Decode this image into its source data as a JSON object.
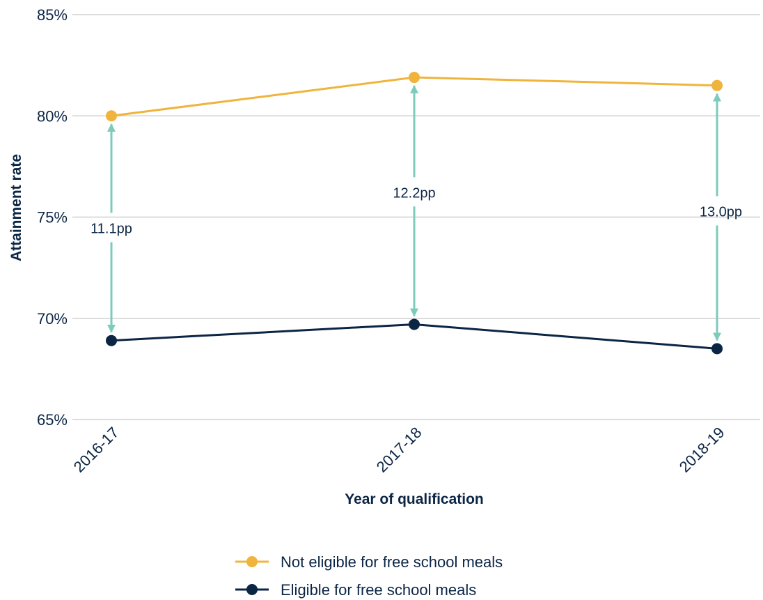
{
  "chart_data": {
    "type": "line",
    "xlabel": "Year of qualification",
    "ylabel": "Attainment rate",
    "categories": [
      "2016-17",
      "2017-18",
      "2018-19"
    ],
    "ylim": [
      65,
      85
    ],
    "yticks": [
      65,
      70,
      75,
      80,
      85
    ],
    "ytick_labels": [
      "65%",
      "70%",
      "75%",
      "80%",
      "85%"
    ],
    "grid": "horizontal",
    "legend_position": "bottom",
    "series": [
      {
        "name": "Not eligible for free school meals",
        "values": [
          80.0,
          81.9,
          81.5
        ],
        "color": "#f0b43c"
      },
      {
        "name": "Eligible for free school meals",
        "values": [
          68.9,
          69.7,
          68.5
        ],
        "color": "#0b2545"
      }
    ],
    "gap_annotations": [
      "11.1pp",
      "12.2pp",
      "13.0pp"
    ],
    "annotation_color": "#7dcbbb",
    "gridline_color": "#d0d0d0",
    "text_color": "#0b2545"
  }
}
